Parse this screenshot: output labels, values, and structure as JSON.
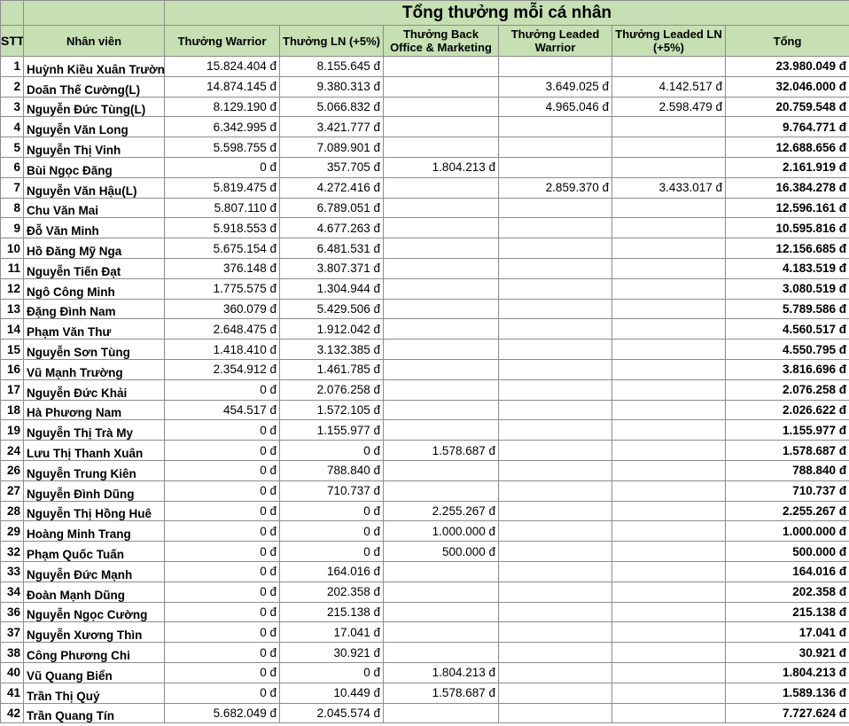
{
  "title": "Tổng thưởng mỗi cá nhân",
  "columns": [
    "STT",
    "Nhân viên",
    "Thưởng Warrior",
    "Thưởng LN (+5%)",
    "Thưởng Back Office & Marketing",
    "Thưởng Leaded Warrior",
    "Thưởng Leaded LN (+5%)",
    "Tổng"
  ],
  "rows": [
    [
      "1",
      "Huỳnh Kiều Xuân Trường",
      "15.824.404 đ",
      "8.155.645 đ",
      "",
      "",
      "",
      "23.980.049 đ"
    ],
    [
      "2",
      "Doãn Thế Cường(L)",
      "14.874.145 đ",
      "9.380.313 đ",
      "",
      "3.649.025 đ",
      "4.142.517 đ",
      "32.046.000 đ"
    ],
    [
      "3",
      "Nguyễn Đức Tùng(L)",
      "8.129.190 đ",
      "5.066.832 đ",
      "",
      "4.965.046 đ",
      "2.598.479 đ",
      "20.759.548 đ"
    ],
    [
      "4",
      "Nguyễn Văn Long",
      "6.342.995 đ",
      "3.421.777 đ",
      "",
      "",
      "",
      "9.764.771 đ"
    ],
    [
      "5",
      "Nguyễn Thị Vinh",
      "5.598.755 đ",
      "7.089.901 đ",
      "",
      "",
      "",
      "12.688.656 đ"
    ],
    [
      "6",
      "Bùi Ngọc Đăng",
      "0 đ",
      "357.705 đ",
      "1.804.213 đ",
      "",
      "",
      "2.161.919 đ"
    ],
    [
      "7",
      "Nguyễn Văn Hậu(L)",
      "5.819.475 đ",
      "4.272.416 đ",
      "",
      "2.859.370 đ",
      "3.433.017 đ",
      "16.384.278 đ"
    ],
    [
      "8",
      "Chu Văn Mai",
      "5.807.110 đ",
      "6.789.051 đ",
      "",
      "",
      "",
      "12.596.161 đ"
    ],
    [
      "9",
      "Đỗ Văn Minh",
      "5.918.553 đ",
      "4.677.263 đ",
      "",
      "",
      "",
      "10.595.816 đ"
    ],
    [
      "10",
      "Hồ Đăng Mỹ Nga",
      "5.675.154 đ",
      "6.481.531 đ",
      "",
      "",
      "",
      "12.156.685 đ"
    ],
    [
      "11",
      "Nguyễn Tiến Đạt",
      "376.148 đ",
      "3.807.371 đ",
      "",
      "",
      "",
      "4.183.519 đ"
    ],
    [
      "12",
      "Ngô Công Minh",
      "1.775.575 đ",
      "1.304.944 đ",
      "",
      "",
      "",
      "3.080.519 đ"
    ],
    [
      "13",
      "Đặng Đình Nam",
      "360.079 đ",
      "5.429.506 đ",
      "",
      "",
      "",
      "5.789.586 đ"
    ],
    [
      "14",
      "Phạm Văn Thư",
      "2.648.475 đ",
      "1.912.042 đ",
      "",
      "",
      "",
      "4.560.517 đ"
    ],
    [
      "15",
      "Nguyễn Sơn Tùng",
      "1.418.410 đ",
      "3.132.385 đ",
      "",
      "",
      "",
      "4.550.795 đ"
    ],
    [
      "16",
      "Vũ Mạnh Trường",
      "2.354.912 đ",
      "1.461.785 đ",
      "",
      "",
      "",
      "3.816.696 đ"
    ],
    [
      "17",
      "Nguyễn Đức Khải",
      "0 đ",
      "2.076.258 đ",
      "",
      "",
      "",
      "2.076.258 đ"
    ],
    [
      "18",
      "Hà Phương Nam",
      "454.517 đ",
      "1.572.105 đ",
      "",
      "",
      "",
      "2.026.622 đ"
    ],
    [
      "19",
      "Nguyễn Thị Trà My",
      "0 đ",
      "1.155.977 đ",
      "",
      "",
      "",
      "1.155.977 đ"
    ],
    [
      "24",
      "Lưu Thị Thanh Xuân",
      "0 đ",
      "0 đ",
      "1.578.687 đ",
      "",
      "",
      "1.578.687 đ"
    ],
    [
      "26",
      "Nguyễn Trung Kiên",
      "0 đ",
      "788.840 đ",
      "",
      "",
      "",
      "788.840 đ"
    ],
    [
      "27",
      "Nguyễn Đình Dũng",
      "0 đ",
      "710.737 đ",
      "",
      "",
      "",
      "710.737 đ"
    ],
    [
      "28",
      "Nguyễn Thị Hồng Huê",
      "0 đ",
      "0 đ",
      "2.255.267 đ",
      "",
      "",
      "2.255.267 đ"
    ],
    [
      "29",
      "Hoàng Minh Trang",
      "0 đ",
      "0 đ",
      "1.000.000 đ",
      "",
      "",
      "1.000.000 đ"
    ],
    [
      "32",
      "Phạm Quốc Tuấn",
      "0 đ",
      "0 đ",
      "500.000 đ",
      "",
      "",
      "500.000 đ"
    ],
    [
      "33",
      "Nguyễn Đức Mạnh",
      "0 đ",
      "164.016 đ",
      "",
      "",
      "",
      "164.016 đ"
    ],
    [
      "34",
      "Đoàn Mạnh Dũng",
      "0 đ",
      "202.358 đ",
      "",
      "",
      "",
      "202.358 đ"
    ],
    [
      "36",
      "Nguyễn Ngọc Cường",
      "0 đ",
      "215.138 đ",
      "",
      "",
      "",
      "215.138 đ"
    ],
    [
      "37",
      "Nguyễn Xương Thìn",
      "0 đ",
      "17.041 đ",
      "",
      "",
      "",
      "17.041 đ"
    ],
    [
      "38",
      "Công Phương Chi",
      "0 đ",
      "30.921 đ",
      "",
      "",
      "",
      "30.921 đ"
    ],
    [
      "40",
      "Vũ Quang Biển",
      "0 đ",
      "0 đ",
      "1.804.213 đ",
      "",
      "",
      "1.804.213 đ"
    ],
    [
      "41",
      "Trần Thị Quý",
      "0 đ",
      "10.449 đ",
      "1.578.687 đ",
      "",
      "",
      "1.589.136 đ"
    ],
    [
      "42",
      "Trần Quang Tín",
      "5.682.049 đ",
      "2.045.574 đ",
      "",
      "",
      "",
      "7.727.624 đ"
    ]
  ]
}
